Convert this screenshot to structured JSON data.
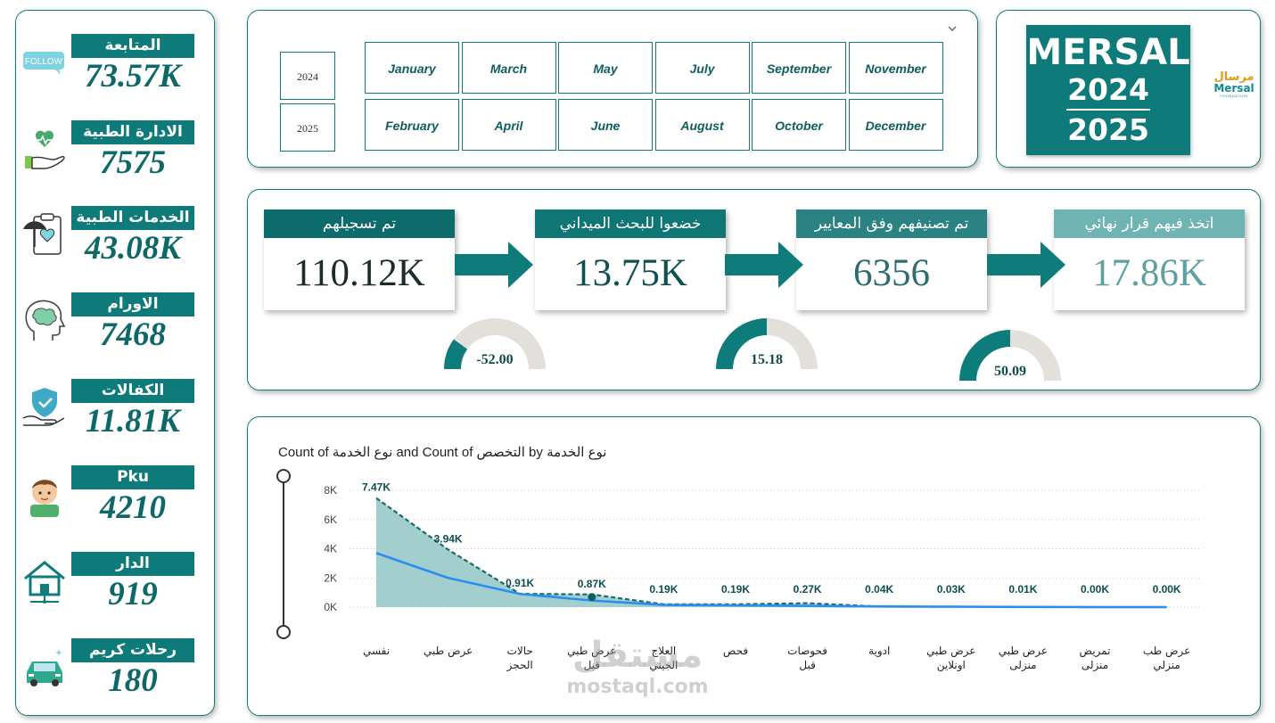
{
  "sidebar": {
    "items": [
      {
        "label": "المتابعة",
        "value": "73.57K",
        "icon": "follow-icon",
        "icon_text": "FOLLOW"
      },
      {
        "label": "الادارة الطبية",
        "value": "7575",
        "icon": "heart-hand-icon"
      },
      {
        "label": "الخدمات الطبية",
        "value": "43.08K",
        "icon": "medical-clipboard-icon"
      },
      {
        "label": "الاورام",
        "value": "7468",
        "icon": "brain-head-icon"
      },
      {
        "label": "الكفالات",
        "value": "11.81K",
        "icon": "shield-hand-icon"
      },
      {
        "label": "Pku",
        "value": "4210",
        "icon": "child-avatar-icon"
      },
      {
        "label": "الدار",
        "value": "919",
        "icon": "house-icon"
      },
      {
        "label": "رحلات كريم",
        "value": "180",
        "icon": "car-icon"
      }
    ]
  },
  "filters": {
    "years": [
      "2024",
      "2025"
    ],
    "months": [
      "January",
      "March",
      "May",
      "July",
      "September",
      "November",
      "February",
      "April",
      "June",
      "August",
      "October",
      "December"
    ]
  },
  "brand": {
    "name": "MERSAL",
    "year_start": "2024",
    "year_end": "2025",
    "logo_ar": "مرسال",
    "logo_en": "Mersal",
    "logo_sub": "FOUNDATION"
  },
  "funnel": {
    "cards": [
      {
        "label": "تم تسجيلهم",
        "value": "110.12K",
        "head_color": "#0e6b6b",
        "value_color": "#1e2b2b"
      },
      {
        "label": "خضعوا للبحث الميداني",
        "value": "13.75K",
        "head_color": "#107575",
        "value_color": "#0f4f4f"
      },
      {
        "label": "تم تصنيفهم وفق المعايير",
        "value": "6356",
        "head_color": "#2a8282",
        "value_color": "#2e6d6d"
      },
      {
        "label": "اتخذ فيهم قرار نهائي",
        "value": "17.86K",
        "head_color": "#6fb3b3",
        "value_color": "#5e9f9f"
      }
    ],
    "gauges": [
      {
        "value": "-52.00",
        "fraction": 0.2
      },
      {
        "value": "15.18",
        "fraction": 0.5
      },
      {
        "value": "50.09",
        "fraction": 0.5
      }
    ],
    "accent": "#0f7c7c"
  },
  "chart_data": {
    "type": "area",
    "title": "Count of نوع الخدمة and Count of التخصص by نوع الخدمة",
    "categories": [
      "نفسي",
      "عرض طبي",
      "حالات الحجز",
      "عرض طبي قبل",
      "العلاج الجيني",
      "فحص",
      "فحوصات قبل",
      "ادوية",
      "عرض طبي اونلاين",
      "عرض طبي منزلى",
      "تمريض منزلى",
      "عرض طب منزلي"
    ],
    "y_ticks": [
      "0K",
      "2K",
      "4K",
      "6K",
      "8K"
    ],
    "ylim": [
      0,
      8000
    ],
    "data_labels": [
      "7.47K",
      "3.94K",
      "0.91K",
      "0.87K",
      "0.19K",
      "0.19K",
      "0.27K",
      "0.04K",
      "0.03K",
      "0.01K",
      "0.00K",
      "0.00K"
    ],
    "series": [
      {
        "values": [
          7470,
          3940,
          910,
          870,
          190,
          190,
          270,
          40,
          30,
          10,
          0,
          0
        ]
      },
      {
        "values": [
          3700,
          2000,
          900,
          450,
          150,
          120,
          80,
          40,
          30,
          10,
          0,
          0
        ]
      }
    ],
    "colors": {
      "area": "#98c9c9",
      "area_line": "#1d6a6a",
      "line": "#2a8ef0"
    }
  },
  "watermark": {
    "ar": "مستقل",
    "en": "mostaql.com"
  }
}
